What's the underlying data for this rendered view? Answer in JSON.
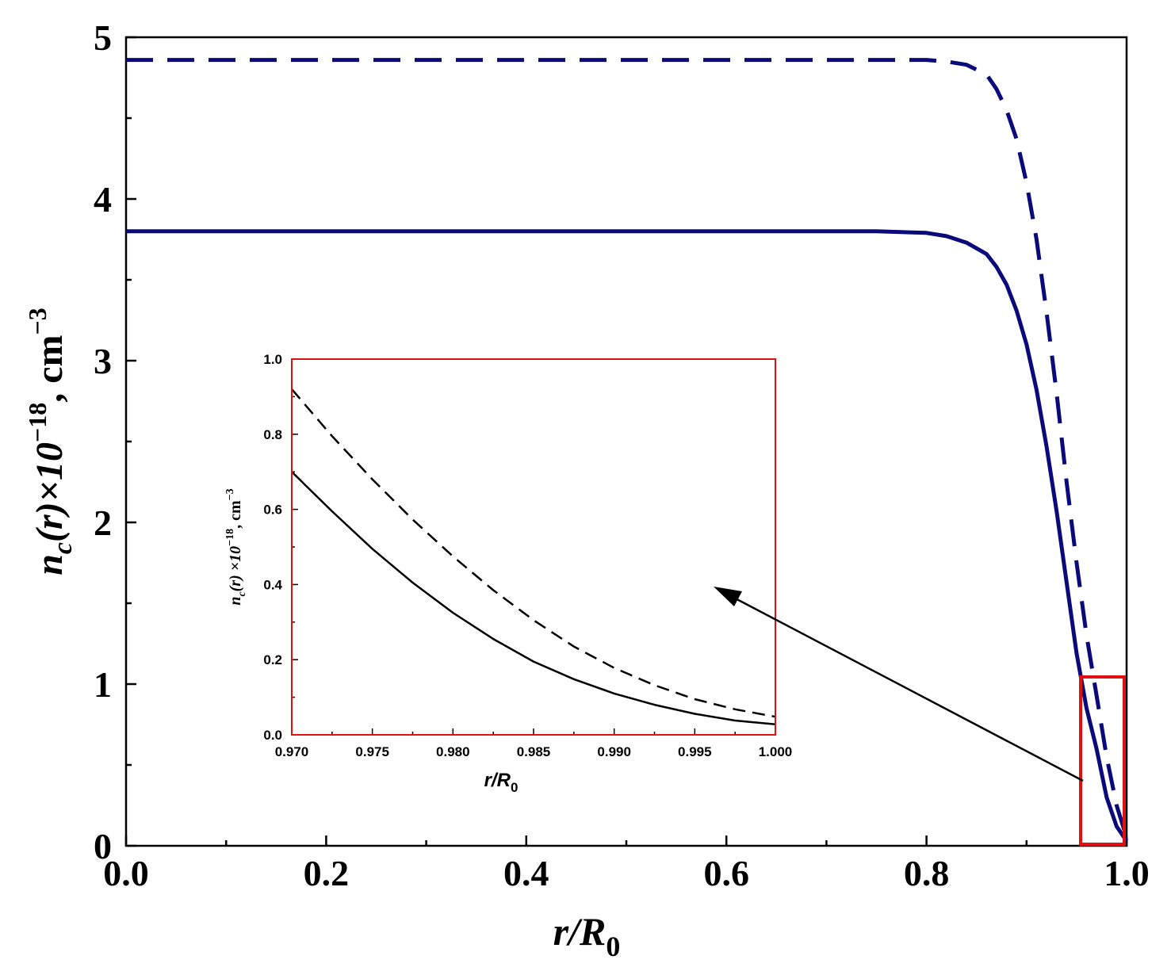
{
  "chart_data": [
    {
      "id": "main",
      "type": "line",
      "title": "",
      "xlabel": {
        "main": "r/R",
        "sub": "0"
      },
      "ylabel": {
        "n": "n",
        "c": "c",
        "r": "(r)×10",
        "exp": "−18",
        "unit": ", cm",
        "unitexp": "−3"
      },
      "xlim": [
        0.0,
        1.0
      ],
      "ylim": [
        0,
        5
      ],
      "xticks": [
        "0.0",
        "0.2",
        "0.4",
        "0.6",
        "0.8",
        "1.0"
      ],
      "xtick_values": [
        0.0,
        0.2,
        0.4,
        0.6,
        0.8,
        1.0
      ],
      "yticks": [
        "0",
        "1",
        "2",
        "3",
        "4",
        "5"
      ],
      "ytick_values": [
        0,
        1,
        2,
        3,
        4,
        5
      ],
      "grid": false,
      "line_color": "#0a0a7a",
      "series": [
        {
          "name": "solid",
          "style": "solid",
          "x": [
            0.0,
            0.1,
            0.2,
            0.3,
            0.4,
            0.5,
            0.6,
            0.7,
            0.75,
            0.8,
            0.82,
            0.84,
            0.86,
            0.87,
            0.88,
            0.89,
            0.9,
            0.91,
            0.92,
            0.93,
            0.94,
            0.95,
            0.96,
            0.97,
            0.98,
            0.99,
            1.0
          ],
          "y": [
            3.8,
            3.8,
            3.8,
            3.8,
            3.8,
            3.8,
            3.8,
            3.8,
            3.8,
            3.79,
            3.77,
            3.73,
            3.66,
            3.58,
            3.47,
            3.31,
            3.1,
            2.82,
            2.47,
            2.07,
            1.63,
            1.19,
            0.85,
            0.6,
            0.3,
            0.12,
            0.03
          ]
        },
        {
          "name": "dashed",
          "style": "dashed",
          "x": [
            0.0,
            0.1,
            0.2,
            0.3,
            0.4,
            0.5,
            0.6,
            0.7,
            0.8,
            0.82,
            0.84,
            0.85,
            0.86,
            0.87,
            0.88,
            0.89,
            0.9,
            0.91,
            0.92,
            0.93,
            0.94,
            0.95,
            0.96,
            0.97,
            0.98,
            0.99,
            1.0
          ],
          "y": [
            4.86,
            4.86,
            4.86,
            4.86,
            4.86,
            4.86,
            4.86,
            4.86,
            4.86,
            4.85,
            4.83,
            4.8,
            4.77,
            4.68,
            4.55,
            4.37,
            4.1,
            3.75,
            3.3,
            2.8,
            2.25,
            1.75,
            1.3,
            0.93,
            0.55,
            0.25,
            0.05
          ]
        }
      ],
      "annotation": {
        "type": "highlight-box",
        "x_range": [
          0.97,
          1.0
        ],
        "y_range": [
          0,
          1.05
        ],
        "color": "#e01010"
      }
    },
    {
      "id": "inset",
      "type": "line",
      "title": "",
      "xlabel": {
        "main": "r/R",
        "sub": "0"
      },
      "ylabel": {
        "n": "n",
        "c": "c",
        "r": "(r) ×10",
        "exp": "−18",
        "unit": ", cm",
        "unitexp": "−3"
      },
      "xlim": [
        0.97,
        1.0
      ],
      "ylim": [
        0.0,
        1.0
      ],
      "xticks": [
        "0.970",
        "0.975",
        "0.980",
        "0.985",
        "0.990",
        "0.995",
        "1.000"
      ],
      "xtick_values": [
        0.97,
        0.975,
        0.98,
        0.985,
        0.99,
        0.995,
        1.0
      ],
      "yticks": [
        "0.0",
        "0.2",
        "0.4",
        "0.6",
        "0.8",
        "1.0"
      ],
      "ytick_values": [
        0.0,
        0.2,
        0.4,
        0.6,
        0.8,
        1.0
      ],
      "grid": false,
      "frame_color": "#e01010",
      "line_color": "#000000",
      "series": [
        {
          "name": "solid",
          "style": "solid",
          "x": [
            0.97,
            0.9725,
            0.975,
            0.9775,
            0.98,
            0.9825,
            0.985,
            0.9875,
            0.99,
            0.9925,
            0.995,
            0.9975,
            1.0
          ],
          "y": [
            0.7,
            0.595,
            0.495,
            0.405,
            0.325,
            0.255,
            0.195,
            0.148,
            0.11,
            0.08,
            0.056,
            0.038,
            0.028
          ]
        },
        {
          "name": "dashed",
          "style": "dashed",
          "x": [
            0.97,
            0.9725,
            0.975,
            0.9775,
            0.98,
            0.9825,
            0.985,
            0.9875,
            0.99,
            0.9925,
            0.995,
            0.9975,
            1.0
          ],
          "y": [
            0.92,
            0.795,
            0.68,
            0.573,
            0.475,
            0.385,
            0.305,
            0.235,
            0.178,
            0.132,
            0.095,
            0.068,
            0.048
          ]
        }
      ]
    }
  ]
}
